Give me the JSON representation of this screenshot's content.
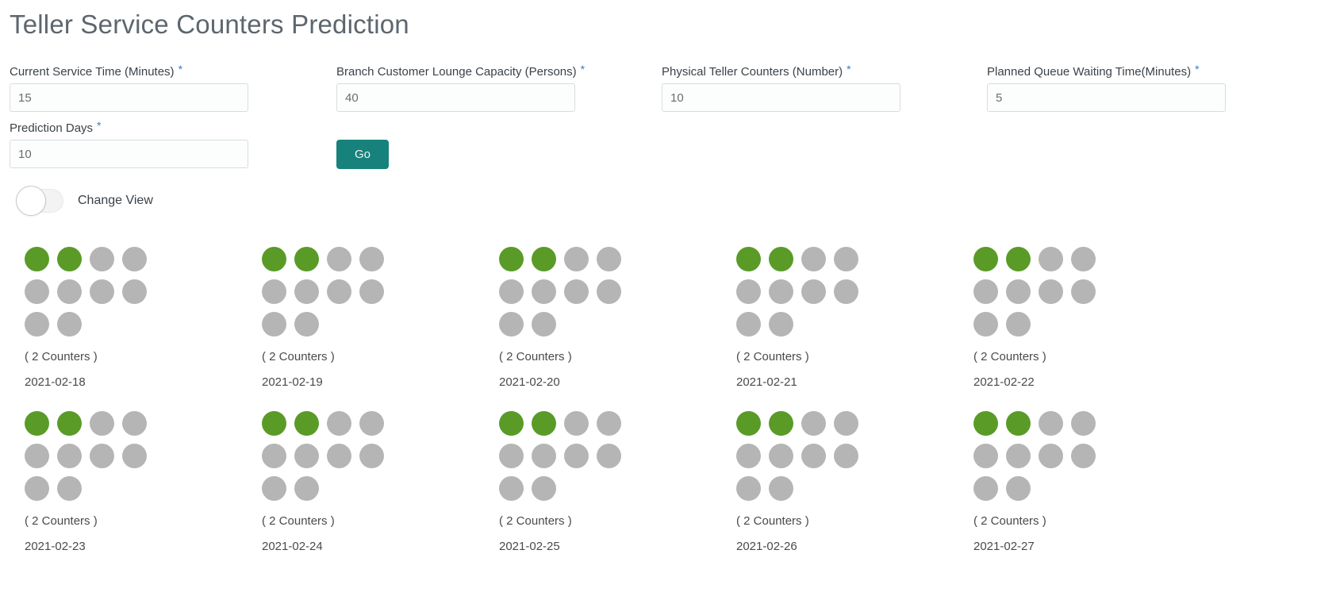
{
  "page": {
    "title": "Teller Service Counters Prediction"
  },
  "form": {
    "required_marker": "*",
    "fields": [
      {
        "label": "Current Service Time (Minutes)",
        "value": "15"
      },
      {
        "label": "Branch Customer Lounge Capacity (Persons)",
        "value": "40"
      },
      {
        "label": "Physical Teller Counters (Number)",
        "value": "10"
      },
      {
        "label": "Planned Queue Waiting Time(Minutes)",
        "value": "5"
      },
      {
        "label": "Prediction Days",
        "value": "10"
      }
    ],
    "go_button_label": "Go",
    "change_view_label": "Change View",
    "change_view_state": "off"
  },
  "predictions": [
    {
      "date": "2021-02-18",
      "counters_label": "( 2 Counters )",
      "predicted_counters": 2,
      "total_dots": 10
    },
    {
      "date": "2021-02-19",
      "counters_label": "( 2 Counters )",
      "predicted_counters": 2,
      "total_dots": 10
    },
    {
      "date": "2021-02-20",
      "counters_label": "( 2 Counters )",
      "predicted_counters": 2,
      "total_dots": 10
    },
    {
      "date": "2021-02-21",
      "counters_label": "( 2 Counters )",
      "predicted_counters": 2,
      "total_dots": 10
    },
    {
      "date": "2021-02-22",
      "counters_label": "( 2 Counters )",
      "predicted_counters": 2,
      "total_dots": 10
    },
    {
      "date": "2021-02-23",
      "counters_label": "( 2 Counters )",
      "predicted_counters": 2,
      "total_dots": 10
    },
    {
      "date": "2021-02-24",
      "counters_label": "( 2 Counters )",
      "predicted_counters": 2,
      "total_dots": 10
    },
    {
      "date": "2021-02-25",
      "counters_label": "( 2 Counters )",
      "predicted_counters": 2,
      "total_dots": 10
    },
    {
      "date": "2021-02-26",
      "counters_label": "( 2 Counters )",
      "predicted_counters": 2,
      "total_dots": 10
    },
    {
      "date": "2021-02-27",
      "counters_label": "( 2 Counters )",
      "predicted_counters": 2,
      "total_dots": 10
    }
  ],
  "colors": {
    "accent_teal": "#17827b",
    "dot_active_green": "#5a9b28",
    "dot_inactive_gray": "#b5b5b5",
    "asterisk_blue": "#2f7ed3"
  }
}
